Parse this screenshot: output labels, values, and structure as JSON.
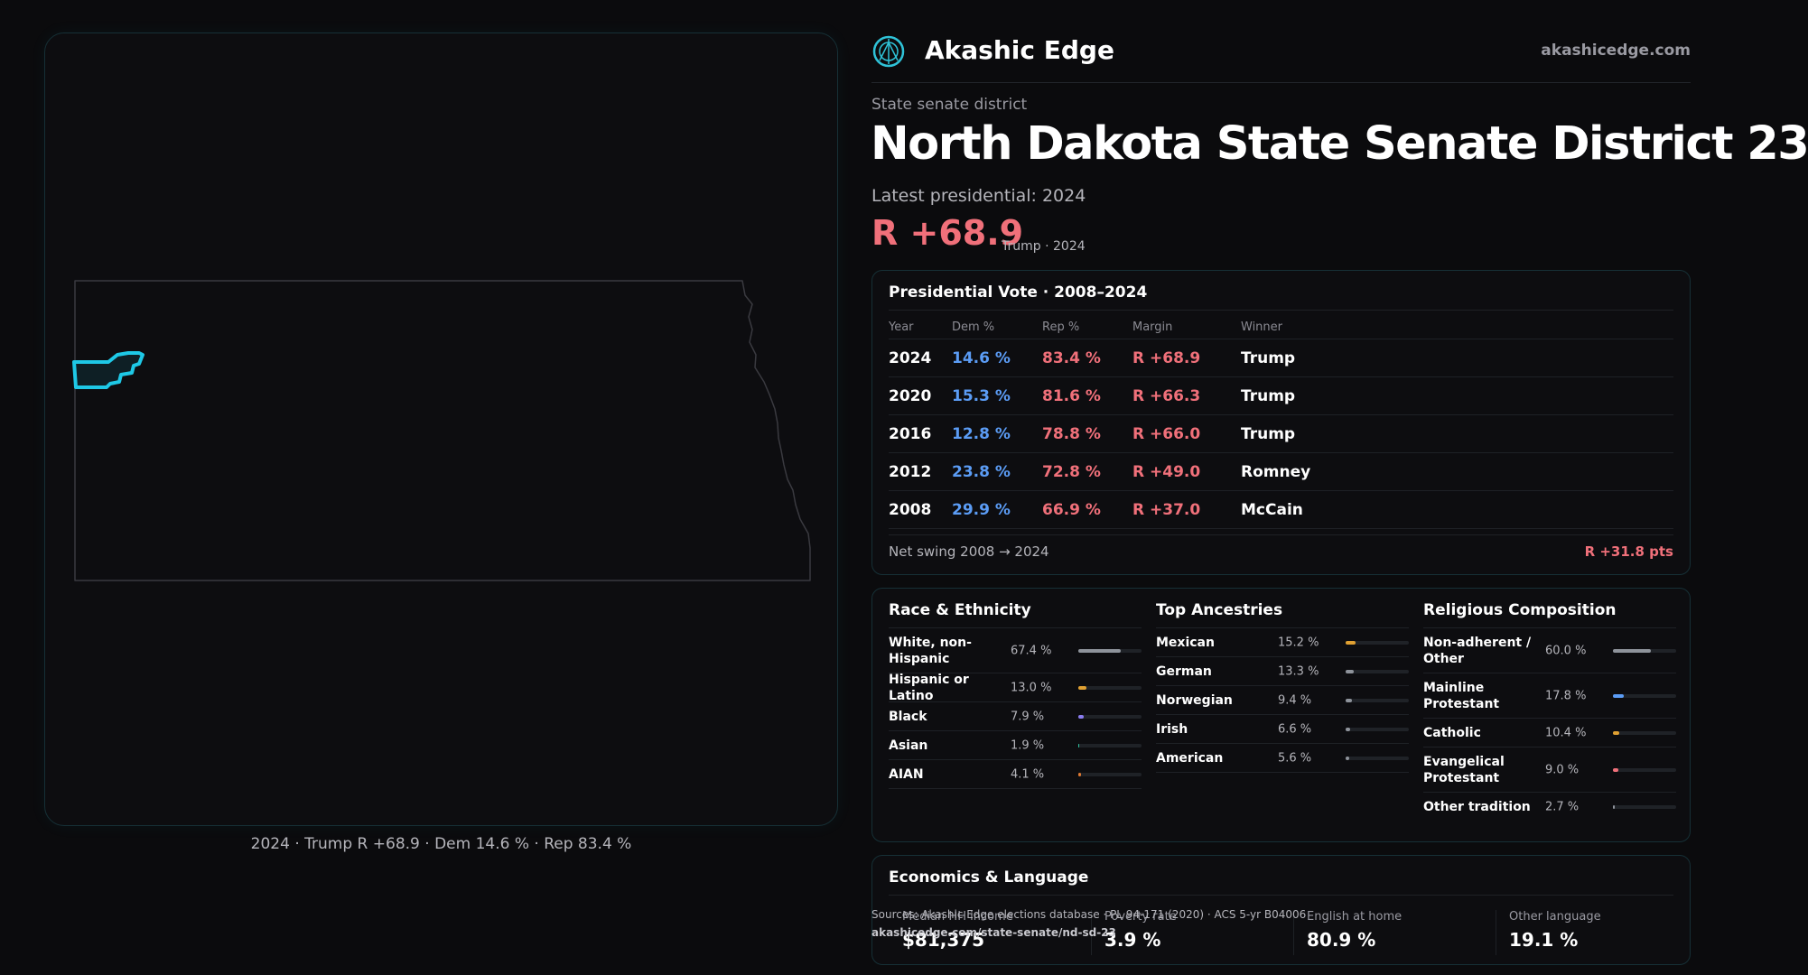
{
  "brand": {
    "name": "Akashic Edge",
    "url": "akashicedge.com",
    "logo_icon": "compass-emblem-icon",
    "accent_color": "#2fc3d8"
  },
  "header": {
    "kicker": "State senate district",
    "title": "North Dakota State Senate District 23",
    "latest_label": "Latest presidential: 2024",
    "margin": "R +68.9",
    "margin_note": "Trump · 2024"
  },
  "map": {
    "caption": "2024 · Trump R +68.9 · Dem 14.6 % · Rep 83.4 %",
    "highlight_color": "#1ec8e6",
    "outline_color": "#3a3a40"
  },
  "presidential": {
    "title": "Presidential Vote · 2008–2024",
    "columns": [
      "Year",
      "Dem %",
      "Rep %",
      "Margin",
      "Winner"
    ],
    "rows": [
      {
        "year": "2024",
        "dem": "14.6 %",
        "rep": "83.4 %",
        "margin": "R +68.9",
        "winner": "Trump"
      },
      {
        "year": "2020",
        "dem": "15.3 %",
        "rep": "81.6 %",
        "margin": "R +66.3",
        "winner": "Trump"
      },
      {
        "year": "2016",
        "dem": "12.8 %",
        "rep": "78.8 %",
        "margin": "R +66.0",
        "winner": "Trump"
      },
      {
        "year": "2012",
        "dem": "23.8 %",
        "rep": "72.8 %",
        "margin": "R +49.0",
        "winner": "Romney"
      },
      {
        "year": "2008",
        "dem": "29.9 %",
        "rep": "66.9 %",
        "margin": "R +37.0",
        "winner": "McCain"
      }
    ],
    "swing_label": "Net swing 2008 → 2024",
    "swing_value": "R +31.8 pts",
    "colors": {
      "dem": "#5b9cf5",
      "rep": "#f0707a"
    }
  },
  "race": {
    "title": "Race & Ethnicity",
    "items": [
      {
        "label": "White, non-Hispanic",
        "pct": "67.4 %",
        "value": 67.4,
        "color": "#8e939b"
      },
      {
        "label": "Hispanic or Latino",
        "pct": "13.0 %",
        "value": 13.0,
        "color": "#e0a032"
      },
      {
        "label": "Black",
        "pct": "7.9 %",
        "value": 7.9,
        "color": "#8a7cf0"
      },
      {
        "label": "Asian",
        "pct": "1.9 %",
        "value": 1.9,
        "color": "#2fc3a0"
      },
      {
        "label": "AIAN",
        "pct": "4.1 %",
        "value": 4.1,
        "color": "#e07a32"
      }
    ]
  },
  "ancestry": {
    "title": "Top Ancestries",
    "items": [
      {
        "label": "Mexican",
        "pct": "15.2 %",
        "value": 15.2,
        "color": "#e0a032"
      },
      {
        "label": "German",
        "pct": "13.3 %",
        "value": 13.3,
        "color": "#8e939b"
      },
      {
        "label": "Norwegian",
        "pct": "9.4 %",
        "value": 9.4,
        "color": "#8e939b"
      },
      {
        "label": "Irish",
        "pct": "6.6 %",
        "value": 6.6,
        "color": "#8e939b"
      },
      {
        "label": "American",
        "pct": "5.6 %",
        "value": 5.6,
        "color": "#8e939b"
      }
    ]
  },
  "religion": {
    "title": "Religious Composition",
    "items": [
      {
        "label": "Non-adherent / Other",
        "pct": "60.0 %",
        "value": 60.0,
        "color": "#8e939b"
      },
      {
        "label": "Mainline Protestant",
        "pct": "17.8 %",
        "value": 17.8,
        "color": "#5b9cf5"
      },
      {
        "label": "Catholic",
        "pct": "10.4 %",
        "value": 10.4,
        "color": "#e0a032"
      },
      {
        "label": "Evangelical Protestant",
        "pct": "9.0 %",
        "value": 9.0,
        "color": "#f0707a"
      },
      {
        "label": "Other tradition",
        "pct": "2.7 %",
        "value": 2.7,
        "color": "#8e939b"
      }
    ]
  },
  "economics": {
    "title": "Economics & Language",
    "stats": [
      {
        "label": "Median HH income",
        "value": "$81,375"
      },
      {
        "label": "Poverty rate",
        "value": "3.9 %"
      },
      {
        "label": "English at home",
        "value": "80.9 %"
      },
      {
        "label": "Other language",
        "value": "19.1 %"
      }
    ]
  },
  "footer": {
    "sources": "Sources: Akashic Edge elections database · PL 94-171 (2020) · ACS 5-yr B04006",
    "url": "akashicedge.com/state-senate/nd-sd-23"
  }
}
